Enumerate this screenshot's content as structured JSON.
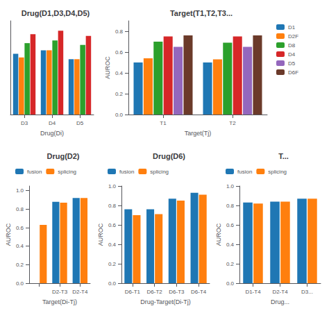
{
  "chart_data": [
    {
      "type": "bar",
      "title": "Drug(D1,D3,D4,D5)",
      "xlabel": "Drug(Di)",
      "categories": [
        "D3",
        "D4",
        "D5"
      ],
      "series": [
        {
          "color": "#1f77b4",
          "values": [
            0.68,
            0.72,
            0.62
          ]
        },
        {
          "color": "#ff7f0e",
          "values": [
            0.64,
            0.72,
            0.62
          ]
        },
        {
          "color": "#2ca02c",
          "values": [
            0.8,
            0.83,
            0.78
          ]
        },
        {
          "color": "#d62728",
          "values": [
            0.9,
            0.94,
            0.88
          ]
        }
      ],
      "ylim": [
        0.0,
        1.05
      ],
      "grid": false,
      "tick_labels": "x"
    },
    {
      "type": "bar",
      "title": "Target(T1,T2,T3...",
      "xlabel": "Target(Tj)",
      "ylabel": "AUROC",
      "categories": [
        "T1",
        "T2"
      ],
      "series": [
        {
          "name": "D1",
          "color": "#1f77b4",
          "values": [
            0.5,
            0.5
          ]
        },
        {
          "name": "D2F",
          "color": "#ff7f0e",
          "values": [
            0.54,
            0.53
          ]
        },
        {
          "name": "D8",
          "color": "#2ca02c",
          "values": [
            0.7,
            0.69
          ]
        },
        {
          "name": "D4",
          "color": "#d62728",
          "values": [
            0.75,
            0.75
          ]
        },
        {
          "name": "D5",
          "color": "#9467bd",
          "values": [
            0.65,
            0.65
          ]
        },
        {
          "name": "D6F",
          "color": "#6b3a2a",
          "values": [
            0.76,
            0.76
          ]
        }
      ],
      "ylim": [
        0.0,
        0.9
      ],
      "yticks": [
        {
          "value": 0,
          "label": "0.0"
        },
        {
          "value": 0.2,
          "label": "0.2"
        },
        {
          "value": 0.4,
          "label": "0.4"
        },
        {
          "value": 0.6,
          "label": "0.6"
        },
        {
          "value": 0.8,
          "label": "0.8"
        }
      ],
      "grid": false,
      "legend": "right"
    },
    {
      "type": "bar",
      "title": "Drug(D2)",
      "xlabel": "Target(Di-Tj)",
      "ylabel": "AUROC",
      "categories": [
        null,
        "D2-T3",
        "D2-T4"
      ],
      "series": [
        {
          "name": "fusion",
          "color": "#1f77b4",
          "values": [
            null,
            0.88,
            0.92
          ]
        },
        {
          "name": "splicing",
          "color": "#ff7f0e",
          "values": [
            0.63,
            0.87,
            0.92
          ]
        }
      ],
      "ylim": [
        0.0,
        1.05
      ],
      "yticks": [
        {
          "value": 0,
          "label": "0.0"
        },
        {
          "value": 0.2,
          "label": "0.2"
        },
        {
          "value": 0.4,
          "label": "0.4"
        },
        {
          "value": 0.6,
          "label": "0.6"
        },
        {
          "value": 0.8,
          "label": "0.8"
        },
        {
          "value": 1,
          "label": "1.0"
        }
      ],
      "grid": false,
      "legend": "upper left"
    },
    {
      "type": "bar",
      "title": "Drug(D6)",
      "xlabel": "Drug-Target(Di-Tj)",
      "ylabel": "AUROC",
      "categories": [
        "D6-T1",
        "D6-T2",
        "D6-T3",
        "D6-T4"
      ],
      "series": [
        {
          "name": "fusion",
          "color": "#1f77b4",
          "values": [
            0.76,
            0.76,
            0.87,
            0.93
          ]
        },
        {
          "name": "splicing",
          "color": "#ff7f0e",
          "values": [
            0.7,
            0.71,
            0.85,
            0.91
          ]
        }
      ],
      "ylim": [
        0.0,
        1.0
      ],
      "yticks": [
        {
          "value": 0,
          "label": "0.0"
        },
        {
          "value": 0.2,
          "label": "0.2"
        },
        {
          "value": 0.4,
          "label": "0.4"
        },
        {
          "value": 0.6,
          "label": "0.6"
        },
        {
          "value": 0.8,
          "label": "0.8"
        },
        {
          "value": 1,
          "label": "1.0"
        }
      ],
      "grid": false,
      "legend": "upper left"
    },
    {
      "type": "bar",
      "title": "T...",
      "xlabel": "Drug...",
      "ylabel": "AUROC",
      "categories": [
        "D1-T4",
        "D2-T4",
        "D3..."
      ],
      "series": [
        {
          "name": "fusion",
          "color": "#1f77b4",
          "values": [
            0.83,
            0.84,
            0.87
          ]
        },
        {
          "name": "splicing",
          "color": "#ff7f0e",
          "values": [
            0.82,
            0.84,
            0.87
          ]
        }
      ],
      "ylim": [
        0.0,
        1.0
      ],
      "yticks": [
        {
          "value": 0,
          "label": "0.0"
        },
        {
          "value": 0.2,
          "label": "0.2"
        },
        {
          "value": 0.4,
          "label": "0.4"
        },
        {
          "value": 0.6,
          "label": "0.6"
        },
        {
          "value": 0.8,
          "label": "0.8"
        },
        {
          "value": 1,
          "label": "1.0"
        }
      ],
      "grid": false,
      "legend": "upper left"
    }
  ]
}
